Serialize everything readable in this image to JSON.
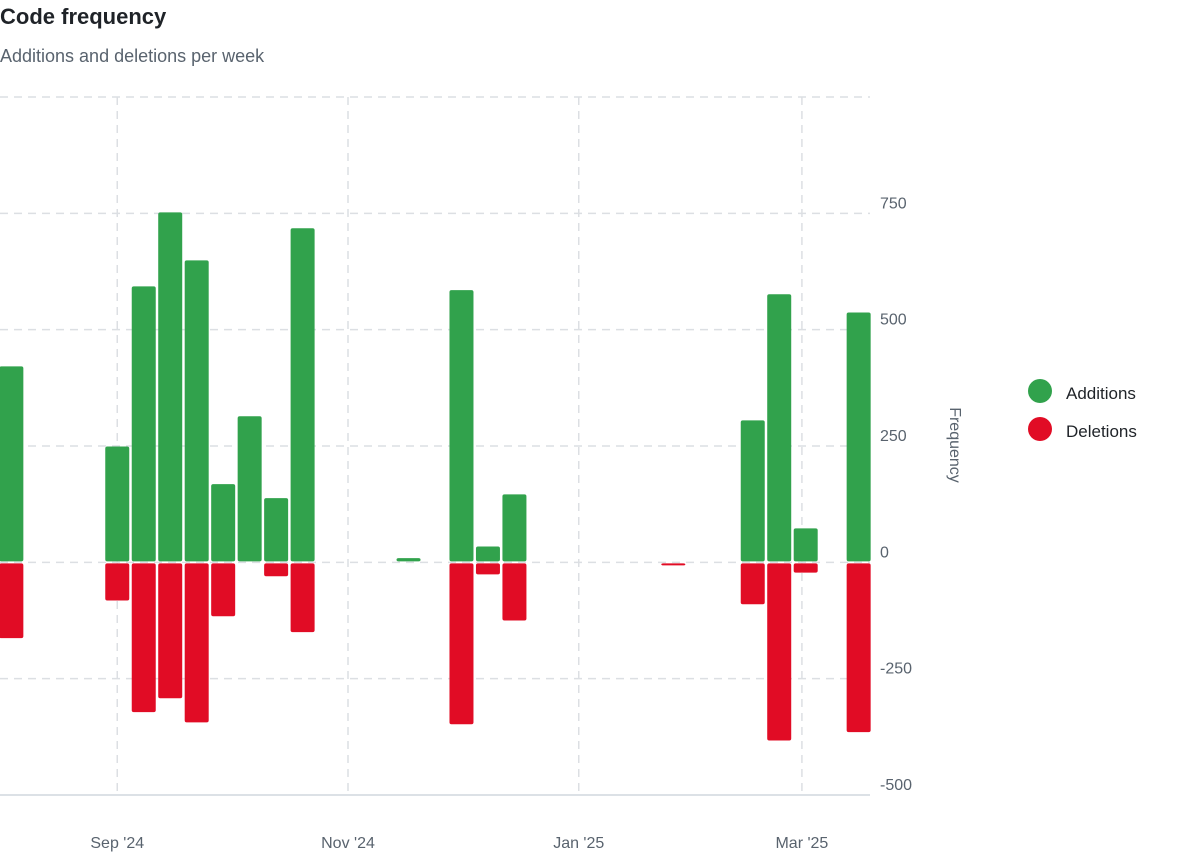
{
  "title": "Code frequency",
  "subtitle": "Additions and deletions per week",
  "chart_data": {
    "type": "bar",
    "title": "Code frequency",
    "subtitle": "Additions and deletions per week",
    "ylabel": "Frequency",
    "xlabel": "",
    "ylim": [
      -500,
      1000
    ],
    "xlim": [
      "2024-08-01",
      "2025-03-19"
    ],
    "yticks": [
      750,
      500,
      250,
      0,
      -250,
      -500
    ],
    "xticks": [
      {
        "date": "2024-09-01",
        "label": "Sep '24"
      },
      {
        "date": "2024-11-01",
        "label": "Nov '24"
      },
      {
        "date": "2025-01-01",
        "label": "Jan '25"
      },
      {
        "date": "2025-03-01",
        "label": "Mar '25"
      }
    ],
    "grid": true,
    "legend_position": "right",
    "colors": {
      "additions": "#31a24c",
      "deletions": "#e10c25"
    },
    "x": [
      "2024-08-04",
      "2024-09-01",
      "2024-09-08",
      "2024-09-15",
      "2024-09-22",
      "2024-09-29",
      "2024-10-06",
      "2024-10-13",
      "2024-10-20",
      "2024-11-17",
      "2024-12-01",
      "2024-12-08",
      "2024-12-15",
      "2025-01-26",
      "2025-02-16",
      "2025-02-23",
      "2025-03-02",
      "2025-03-16"
    ],
    "series": [
      {
        "name": "Additions",
        "values": [
          421,
          249,
          593,
          752,
          649,
          168,
          314,
          138,
          718,
          9,
          585,
          34,
          146,
          0,
          305,
          576,
          73,
          537
        ]
      },
      {
        "name": "Deletions",
        "values": [
          -163,
          -82,
          -322,
          -292,
          -344,
          -116,
          0,
          -30,
          -150,
          0,
          -348,
          -26,
          -125,
          -4,
          -90,
          -383,
          -22,
          -365
        ]
      }
    ]
  }
}
